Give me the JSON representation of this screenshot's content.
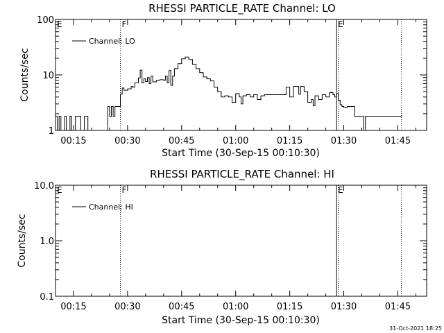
{
  "footer": {
    "timestamp": "31-Oct-2021 18:25"
  },
  "chart_data": [
    {
      "type": "line",
      "title": "RHESSI PARTICLE_RATE Channel: LO",
      "xlabel": "Start Time (30-Sep-15 00:10:30)",
      "ylabel": "Counts/sec",
      "yscale": "log",
      "ylim": [
        1,
        100
      ],
      "xlim": [
        "00:10",
        "01:53"
      ],
      "ytick_values": [
        1,
        10,
        100
      ],
      "ytick_labels": [
        "1",
        "10",
        "100"
      ],
      "xtick_labels": [
        "00:15",
        "00:30",
        "00:45",
        "01:00",
        "01:15",
        "01:30",
        "01:45"
      ],
      "legend": {
        "label": "Channel: LO",
        "position": "top-left"
      },
      "grid": false,
      "markers": [
        {
          "time": "00:28",
          "label": "F",
          "style": "dotted"
        },
        {
          "time": "01:28",
          "label": "E",
          "style": "solid"
        },
        {
          "time": "01:28.5",
          "label": "",
          "style": "dotted"
        },
        {
          "time": "01:46",
          "label": "",
          "style": "dotted"
        }
      ],
      "edge_labels": [
        {
          "side": "left",
          "label": "E"
        }
      ],
      "series": [
        {
          "name": "Channel: LO",
          "x": [
            "00:10",
            "00:10.5",
            "00:11",
            "00:11.5",
            "00:12",
            "00:12.5",
            "00:13",
            "00:13.5",
            "00:14",
            "00:14.5",
            "00:15",
            "00:15.5",
            "00:16",
            "00:16.5",
            "00:17",
            "00:17.5",
            "00:18",
            "00:18.5",
            "00:19",
            "00:20",
            "00:21",
            "00:22",
            "00:23",
            "00:24",
            "00:24.5",
            "00:25",
            "00:25.5",
            "00:26",
            "00:26.5",
            "00:27",
            "00:27.5",
            "00:28",
            "00:28.5",
            "00:29",
            "00:30",
            "00:31",
            "00:31.5",
            "00:32",
            "00:33",
            "00:33.5",
            "00:34",
            "00:34.5",
            "00:35",
            "00:35.5",
            "00:36",
            "00:36.5",
            "00:37",
            "00:38",
            "00:39",
            "00:40",
            "00:40.5",
            "00:41",
            "00:41.5",
            "00:42",
            "00:42.5",
            "00:43",
            "00:44",
            "00:45",
            "00:46",
            "00:47",
            "00:48",
            "00:49",
            "00:50",
            "00:51",
            "00:52",
            "00:53",
            "00:54",
            "00:55",
            "00:56",
            "00:57",
            "00:58",
            "00:59",
            "01:00",
            "01:01",
            "01:01.5",
            "01:02",
            "01:03",
            "01:04",
            "01:05",
            "01:06",
            "01:07",
            "01:08",
            "01:09",
            "01:10",
            "01:11",
            "01:12",
            "01:13",
            "01:14",
            "01:15",
            "01:16",
            "01:17",
            "01:17.5",
            "01:18",
            "01:19",
            "01:20",
            "01:21",
            "01:21.5",
            "01:22",
            "01:23",
            "01:24",
            "01:25",
            "01:26",
            "01:27",
            "01:27.5",
            "01:28",
            "01:28.5",
            "01:29",
            "01:29.5",
            "01:30",
            "01:31",
            "01:32",
            "01:33",
            "01:34",
            "01:35",
            "01:35.5",
            "01:36",
            "01:37",
            "01:38",
            "01:39",
            "01:40",
            "01:41",
            "01:42",
            "01:43",
            "01:44",
            "01:45",
            "01:46"
          ],
          "values": [
            1.8,
            1,
            1.8,
            1,
            1,
            1.8,
            1,
            1,
            1.8,
            1,
            1,
            1.8,
            1.8,
            1.8,
            1,
            1,
            1.8,
            1.8,
            1,
            1,
            1,
            1,
            1,
            1,
            2.7,
            1.8,
            2.7,
            1.8,
            2.7,
            2.7,
            2.7,
            4.5,
            5.8,
            5.3,
            5.6,
            6.2,
            6.0,
            7.2,
            8.8,
            12.2,
            7.2,
            8.5,
            7.6,
            9.0,
            7.0,
            9.5,
            7.5,
            8.0,
            8.2,
            8.0,
            9.5,
            7.2,
            12.0,
            6.5,
            9.5,
            13.0,
            16.0,
            19.5,
            21.0,
            19.0,
            15.5,
            13.0,
            11.0,
            9.2,
            8.5,
            7.8,
            6.0,
            5.0,
            4.0,
            4.2,
            4.0,
            3.2,
            4.6,
            4.0,
            3.0,
            4.2,
            4.4,
            4.0,
            4.4,
            3.6,
            4.2,
            4.4,
            4.4,
            4.4,
            4.4,
            4.4,
            4.4,
            6.0,
            4.0,
            6.2,
            6.2,
            4.5,
            6.2,
            5.0,
            3.2,
            3.6,
            2.8,
            4.2,
            3.6,
            4.4,
            4.0,
            4.8,
            4.4,
            4.0,
            4.6,
            3.5,
            2.9,
            2.7,
            2.6,
            2.7,
            2.7,
            1.8,
            1.8,
            1.8,
            1,
            1.8,
            1.8,
            1.8,
            1.8,
            1.8,
            1.8,
            1.8,
            1.8,
            1.8,
            1.8,
            1.8
          ]
        }
      ]
    },
    {
      "type": "line",
      "title": "RHESSI PARTICLE_RATE Channel: HI",
      "xlabel": "Start Time (30-Sep-15 00:10:30)",
      "ylabel": "Counts/sec",
      "yscale": "log",
      "ylim": [
        0.1,
        10
      ],
      "xlim": [
        "00:10",
        "01:53"
      ],
      "ytick_values": [
        0.1,
        1,
        10
      ],
      "ytick_labels": [
        "0.1",
        "1.0",
        "10.0"
      ],
      "xtick_labels": [
        "00:15",
        "00:30",
        "00:45",
        "01:00",
        "01:15",
        "01:30",
        "01:45"
      ],
      "legend": {
        "label": "Channel: HI",
        "position": "top-left"
      },
      "grid": false,
      "markers": [
        {
          "time": "00:28",
          "label": "F",
          "style": "dotted"
        },
        {
          "time": "01:28",
          "label": "E",
          "style": "solid"
        },
        {
          "time": "01:28.5",
          "label": "",
          "style": "dotted"
        },
        {
          "time": "01:46",
          "label": "",
          "style": "dotted"
        }
      ],
      "edge_labels": [
        {
          "side": "left",
          "label": "E"
        }
      ],
      "series": [
        {
          "name": "Channel: HI",
          "x": [],
          "values": []
        }
      ]
    }
  ]
}
